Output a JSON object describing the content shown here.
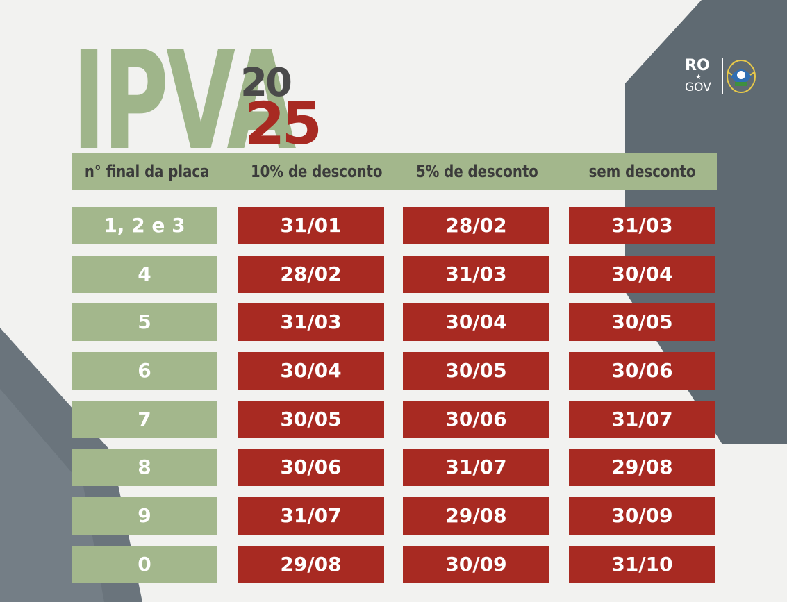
{
  "title": {
    "main": "IPVA",
    "year_top": "20",
    "year_bottom": "25"
  },
  "logo": {
    "top": "RO",
    "bottom": "GOV"
  },
  "table": {
    "headers": [
      "n° final da placa",
      "10% de desconto",
      "5% de desconto",
      "sem desconto"
    ],
    "rows": [
      {
        "plate": "1, 2  e 3",
        "d10": "31/01",
        "d5": "28/02",
        "none": "31/03"
      },
      {
        "plate": "4",
        "d10": "28/02",
        "d5": "31/03",
        "none": "30/04"
      },
      {
        "plate": "5",
        "d10": "31/03",
        "d5": "30/04",
        "none": "30/05"
      },
      {
        "plate": "6",
        "d10": "30/04",
        "d5": "30/05",
        "none": "30/06"
      },
      {
        "plate": "7",
        "d10": "30/05",
        "d5": "30/06",
        "none": "31/07"
      },
      {
        "plate": "8",
        "d10": "30/06",
        "d5": "31/07",
        "none": "29/08"
      },
      {
        "plate": "9",
        "d10": "31/07",
        "d5": "29/08",
        "none": "30/09"
      },
      {
        "plate": "0",
        "d10": "29/08",
        "d5": "30/09",
        "none": "31/10"
      }
    ]
  },
  "colors": {
    "green": "#a3b78c",
    "red": "#a82a22",
    "slate": "#5f6a72",
    "background": "#f2f2f0"
  }
}
